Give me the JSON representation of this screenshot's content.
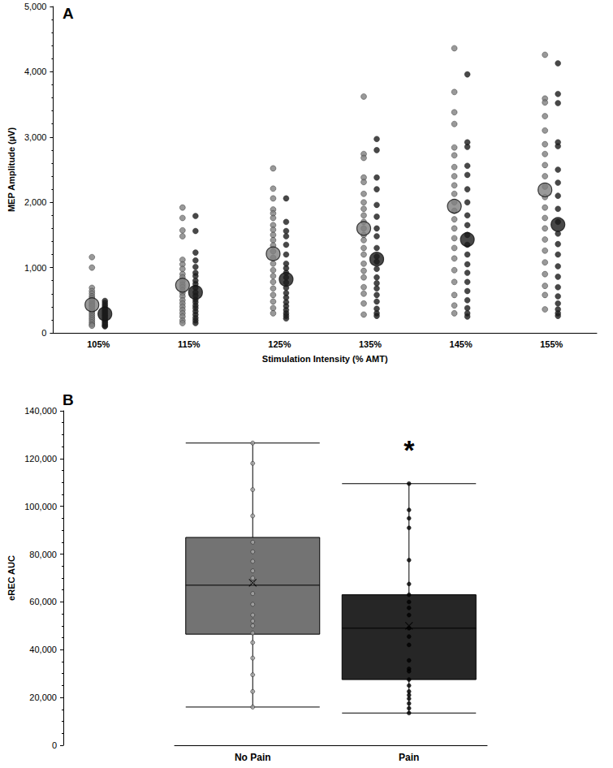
{
  "chart_data": [
    {
      "type": "scatter",
      "title": "A",
      "x_label": "Stimulation Intensity (% AMT)",
      "y_label": "MEP Amplitude (µV)",
      "categories": [
        "105%",
        "115%",
        "125%",
        "135%",
        "145%",
        "155%"
      ],
      "ylim": [
        0,
        5000
      ],
      "yticks": [
        0,
        1000,
        2000,
        3000,
        4000,
        5000
      ],
      "grid": false,
      "series": [
        {
          "color": "#7f7f7f",
          "marker": "circle",
          "means": [
            430,
            730,
            1210,
            1600,
            1940,
            2190
          ],
          "values": [
            [
              1160,
              1000,
              690,
              640,
              600,
              560,
              530,
              500,
              470,
              440,
              420,
              400,
              370,
              340,
              310,
              280,
              250,
              220,
              190,
              160,
              130,
              110
            ],
            [
              1920,
              1760,
              1570,
              1480,
              1120,
              1050,
              980,
              900,
              850,
              790,
              740,
              700,
              650,
              610,
              560,
              500,
              450,
              400,
              350,
              300,
              250,
              190,
              150
            ],
            [
              2520,
              2210,
              2060,
              1890,
              1830,
              1760,
              1650,
              1580,
              1500,
              1420,
              1340,
              1250,
              1150,
              1060,
              960,
              870,
              780,
              680,
              580,
              480,
              380,
              300
            ],
            [
              3620,
              2740,
              2680,
              2380,
              2310,
              2130,
              2000,
              1900,
              1800,
              1700,
              1600,
              1500,
              1420,
              1300,
              1200,
              1060,
              950,
              850,
              700,
              600,
              450,
              280
            ],
            [
              4360,
              3690,
              3380,
              3200,
              2840,
              2720,
              2540,
              2400,
              2260,
              2130,
              2000,
              1870,
              1740,
              1600,
              1450,
              1300,
              1140,
              960,
              780,
              580,
              420,
              300
            ],
            [
              4260,
              3590,
              3530,
              3320,
              3100,
              2890,
              2740,
              2570,
              2400,
              2240,
              2080,
              1920,
              1760,
              1600,
              1430,
              1260,
              1080,
              900,
              720,
              580,
              360
            ]
          ]
        },
        {
          "color": "#1a1a1a",
          "marker": "circle",
          "means": [
            290,
            620,
            820,
            1130,
            1430,
            1660
          ],
          "values": [
            [
              490,
              460,
              430,
              400,
              370,
              350,
              330,
              310,
              290,
              270,
              250,
              230,
              210,
              190,
              170,
              150,
              130,
              110,
              100
            ],
            [
              1790,
              1560,
              1230,
              1110,
              1010,
              920,
              870,
              800,
              750,
              690,
              620,
              570,
              510,
              470,
              420,
              380,
              330,
              280,
              230,
              190,
              150
            ],
            [
              2060,
              1700,
              1560,
              1480,
              1350,
              1200,
              1060,
              990,
              920,
              850,
              770,
              690,
              610,
              540,
              470,
              410,
              350,
              300,
              260,
              220
            ],
            [
              2970,
              2800,
              2380,
              2200,
              1960,
              1780,
              1600,
              1480,
              1300,
              1170,
              1090,
              980,
              850,
              760,
              680,
              580,
              480,
              370,
              300,
              260
            ],
            [
              3960,
              2920,
              2850,
              2560,
              2420,
              2200,
              2000,
              1800,
              1650,
              1500,
              1350,
              1200,
              1050,
              920,
              780,
              640,
              500,
              380,
              300,
              250
            ],
            [
              4130,
              3660,
              3520,
              2920,
              2860,
              2500,
              2300,
              2100,
              1900,
              1700,
              1520,
              1360,
              1200,
              1020,
              860,
              700,
              560,
              450,
              360,
              300,
              260
            ]
          ]
        }
      ]
    },
    {
      "type": "boxplot",
      "title": "B",
      "y_label": "eREC AUC",
      "categories": [
        "No Pain",
        "Pain"
      ],
      "ylim": [
        0,
        140000
      ],
      "yticks": [
        0,
        20000,
        40000,
        60000,
        80000,
        100000,
        120000,
        140000
      ],
      "grid": false,
      "boxes": [
        {
          "color": "#737373",
          "whisker_low": 16000,
          "q1": 46500,
          "median": 67000,
          "q3": 87000,
          "whisker_high": 126500,
          "mean": 68000,
          "values": [
            126500,
            118000,
            107000,
            96000,
            85000,
            81000,
            77000,
            73000,
            70000,
            68000,
            63500,
            59000,
            54500,
            52000,
            50000,
            47000,
            43000,
            36500,
            29500,
            22500,
            16000
          ]
        },
        {
          "color": "#262626",
          "whisker_low": 13500,
          "q1": 27500,
          "median": 49000,
          "q3": 63000,
          "whisker_high": 109500,
          "mean": 50000,
          "values": [
            109500,
            98500,
            95000,
            91000,
            77500,
            67500,
            63000,
            60000,
            57500,
            54500,
            49000,
            45500,
            42000,
            35500,
            32000,
            31000,
            27500,
            25000,
            22500,
            21000,
            19500,
            17500,
            15500,
            13500
          ]
        }
      ],
      "annotations": [
        {
          "text": "*",
          "category": "Pain"
        }
      ]
    }
  ]
}
